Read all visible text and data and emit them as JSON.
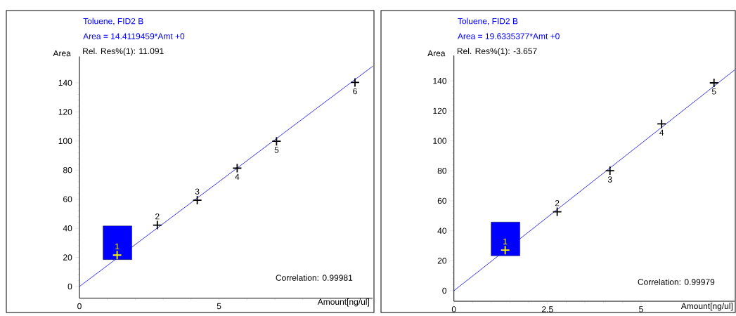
{
  "chart_data": [
    {
      "type": "scatter",
      "title": "Toluene, FID2 B",
      "subtitle": "Area = 14.4119459*Amt +0",
      "xlabel": "Amount[ng/ul]",
      "ylabel": "Area",
      "xlim": [
        0,
        10.5
      ],
      "ylim": [
        -8,
        158
      ],
      "xticks": [
        0,
        5,
        {
          "value": 10,
          "label": null
        }
      ],
      "yticks": [
        0,
        20,
        40,
        60,
        80,
        100,
        120,
        140
      ],
      "marker": "cross",
      "annotations": [
        "Rel. Res%(1): 11.091",
        "Correlation: 0.99981",
        {
          "text": "1",
          "x": 1.35,
          "y": 21.6
        },
        {
          "text": "2",
          "x": 2.79,
          "y": 42.2
        },
        {
          "text": "3",
          "x": 4.22,
          "y": 59.3
        },
        {
          "text": "4",
          "x": 5.65,
          "y": 81.3
        },
        {
          "text": "5",
          "x": 7.06,
          "y": 99.8
        },
        {
          "text": "6",
          "x": 9.87,
          "y": 140.2
        }
      ],
      "series": [
        {
          "x": [
            1.35,
            2.79,
            4.22,
            5.65,
            7.06,
            9.87
          ],
          "values": [
            21.6,
            42.2,
            59.3,
            81.3,
            99.8,
            140.2
          ],
          "colors": [
            "#ffff00",
            "#000000",
            "#000000",
            "#000000",
            "#000000",
            "#000000"
          ]
        },
        {
          "type": "line",
          "x": [
            0,
            10.5
          ],
          "values": [
            0,
            151.3
          ],
          "color": "#0000ff",
          "marker": "none"
        }
      ]
    },
    {
      "type": "scatter",
      "title": "Toluene, FID2 B",
      "subtitle": "Area = 19.6335377*Amt +0",
      "xlabel": "Amount[ng/ul]",
      "ylabel": "Area",
      "xlim": [
        0,
        7.5
      ],
      "ylim": [
        -7,
        157
      ],
      "xticks": [
        0,
        2.5,
        5
      ],
      "yticks": [
        0,
        20,
        40,
        60,
        80,
        100,
        120,
        140
      ],
      "marker": "cross",
      "annotations": [
        "Rel. Res%(1): -3.657",
        "Correlation: 0.99979",
        {
          "text": "1",
          "x": 1.37,
          "y": 27.1
        },
        {
          "text": "2",
          "x": 2.76,
          "y": 52.7
        },
        {
          "text": "3",
          "x": 4.17,
          "y": 80.1
        },
        {
          "text": "4",
          "x": 5.55,
          "y": 111.3
        },
        {
          "text": "5",
          "x": 6.95,
          "y": 138.7
        }
      ],
      "series": [
        {
          "x": [
            1.37,
            2.76,
            4.17,
            5.55,
            6.95
          ],
          "values": [
            27.1,
            52.7,
            80.1,
            111.3,
            138.7
          ],
          "colors": [
            "#ffff00",
            "#000000",
            "#000000",
            "#000000",
            "#000000"
          ]
        },
        {
          "type": "line",
          "x": [
            0,
            7.5
          ],
          "values": [
            0,
            147.3
          ],
          "color": "#0000ff",
          "marker": "none"
        }
      ]
    }
  ]
}
